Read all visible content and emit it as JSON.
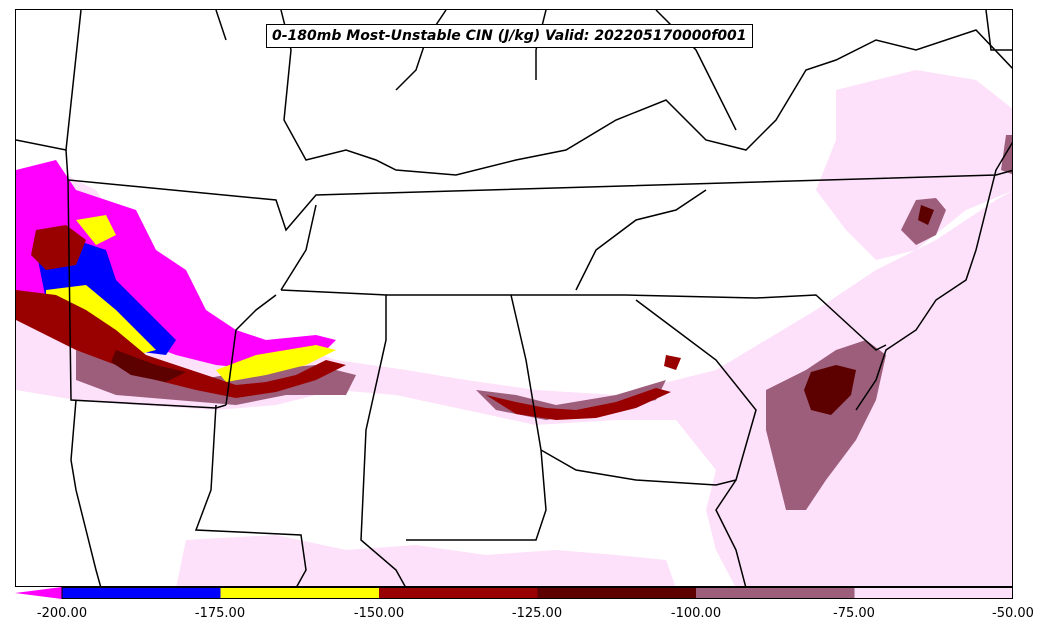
{
  "title": "0-180mb Most-Unstable CIN (J/kg) Valid: 202205170000f001",
  "colorbar": {
    "bins": [
      {
        "from": -200,
        "to": -175,
        "color": "#0000ff"
      },
      {
        "from": -175,
        "to": -150,
        "color": "#ffff00"
      },
      {
        "from": -150,
        "to": -125,
        "color": "#990000"
      },
      {
        "from": -125,
        "to": -100,
        "color": "#5c0000"
      },
      {
        "from": -100,
        "to": -75,
        "color": "#9c5e7a"
      },
      {
        "from": -75,
        "to": -50,
        "color": "#fde0fa"
      }
    ],
    "extend_below_color": "#ff00ff",
    "ticks": [
      "-200.00",
      "-175.00",
      "-150.00",
      "-125.00",
      "-100.00",
      "-75.00",
      "-50.00"
    ]
  },
  "colors": {
    "lt_pink": "#fde0fa",
    "mauve": "#9c5e7a",
    "dark_maroon": "#5c0000",
    "red": "#990000",
    "yellow": "#ffff00",
    "blue": "#0000ff",
    "magenta": "#ff00ff"
  }
}
